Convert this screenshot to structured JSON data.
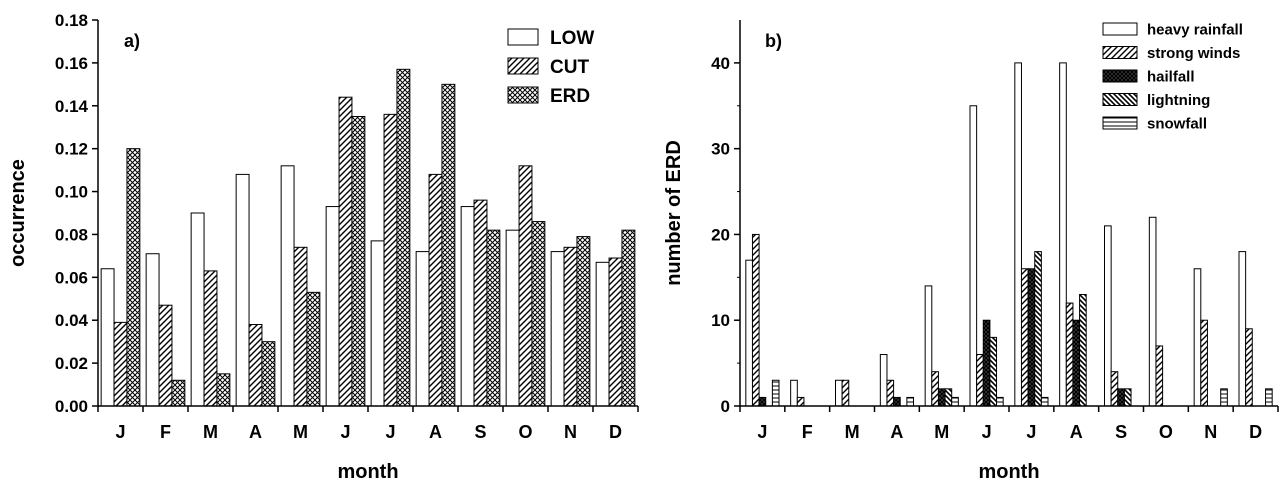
{
  "chart_data": [
    {
      "type": "bar",
      "panel_label": "a)",
      "xlabel": "month",
      "ylabel": "occurrence",
      "categories": [
        "J",
        "F",
        "M",
        "A",
        "M",
        "J",
        "J",
        "A",
        "S",
        "O",
        "N",
        "D"
      ],
      "ylim": [
        0,
        0.18
      ],
      "yticks": [
        "0.00",
        "0.02",
        "0.04",
        "0.06",
        "0.08",
        "0.10",
        "0.12",
        "0.14",
        "0.16",
        "0.18"
      ],
      "grid": false,
      "legend_position": "top-right",
      "series": [
        {
          "name": "LOW",
          "pattern": "white",
          "values": [
            0.064,
            0.071,
            0.09,
            0.108,
            0.112,
            0.093,
            0.077,
            0.072,
            0.093,
            0.082,
            0.072,
            0.067
          ]
        },
        {
          "name": "CUT",
          "pattern": "diagonal-hatch",
          "values": [
            0.039,
            0.047,
            0.063,
            0.038,
            0.074,
            0.144,
            0.136,
            0.108,
            0.096,
            0.112,
            0.074,
            0.069
          ]
        },
        {
          "name": "ERD",
          "pattern": "crosshatch",
          "values": [
            0.12,
            0.012,
            0.015,
            0.03,
            0.053,
            0.135,
            0.157,
            0.15,
            0.082,
            0.086,
            0.079,
            0.082
          ]
        }
      ]
    },
    {
      "type": "bar",
      "panel_label": "b)",
      "xlabel": "month",
      "ylabel": "number of ERD",
      "categories": [
        "J",
        "F",
        "M",
        "A",
        "M",
        "J",
        "J",
        "A",
        "S",
        "O",
        "N",
        "D"
      ],
      "ylim": [
        0,
        45
      ],
      "yticks": [
        "0",
        "10",
        "20",
        "30",
        "40"
      ],
      "grid": false,
      "legend_position": "top-right",
      "series": [
        {
          "name": "heavy rainfall",
          "pattern": "white",
          "values": [
            17,
            3,
            3,
            6,
            14,
            35,
            40,
            40,
            21,
            22,
            16,
            18
          ]
        },
        {
          "name": "strong winds",
          "pattern": "diagonal-hatch",
          "values": [
            20,
            1,
            3,
            3,
            4,
            6,
            16,
            12,
            4,
            7,
            10,
            9
          ]
        },
        {
          "name": "hailfall",
          "pattern": "dense-crosshatch",
          "values": [
            1,
            0,
            0,
            1,
            2,
            10,
            16,
            10,
            2,
            0,
            0,
            0
          ]
        },
        {
          "name": "lightning",
          "pattern": "back-diagonal-hatch",
          "values": [
            0,
            0,
            0,
            0,
            2,
            8,
            18,
            13,
            2,
            0,
            0,
            0
          ]
        },
        {
          "name": "snowfall",
          "pattern": "horizontal-lines",
          "values": [
            3,
            0,
            0,
            1,
            1,
            1,
            1,
            0,
            0,
            0,
            2,
            2
          ]
        }
      ]
    }
  ]
}
